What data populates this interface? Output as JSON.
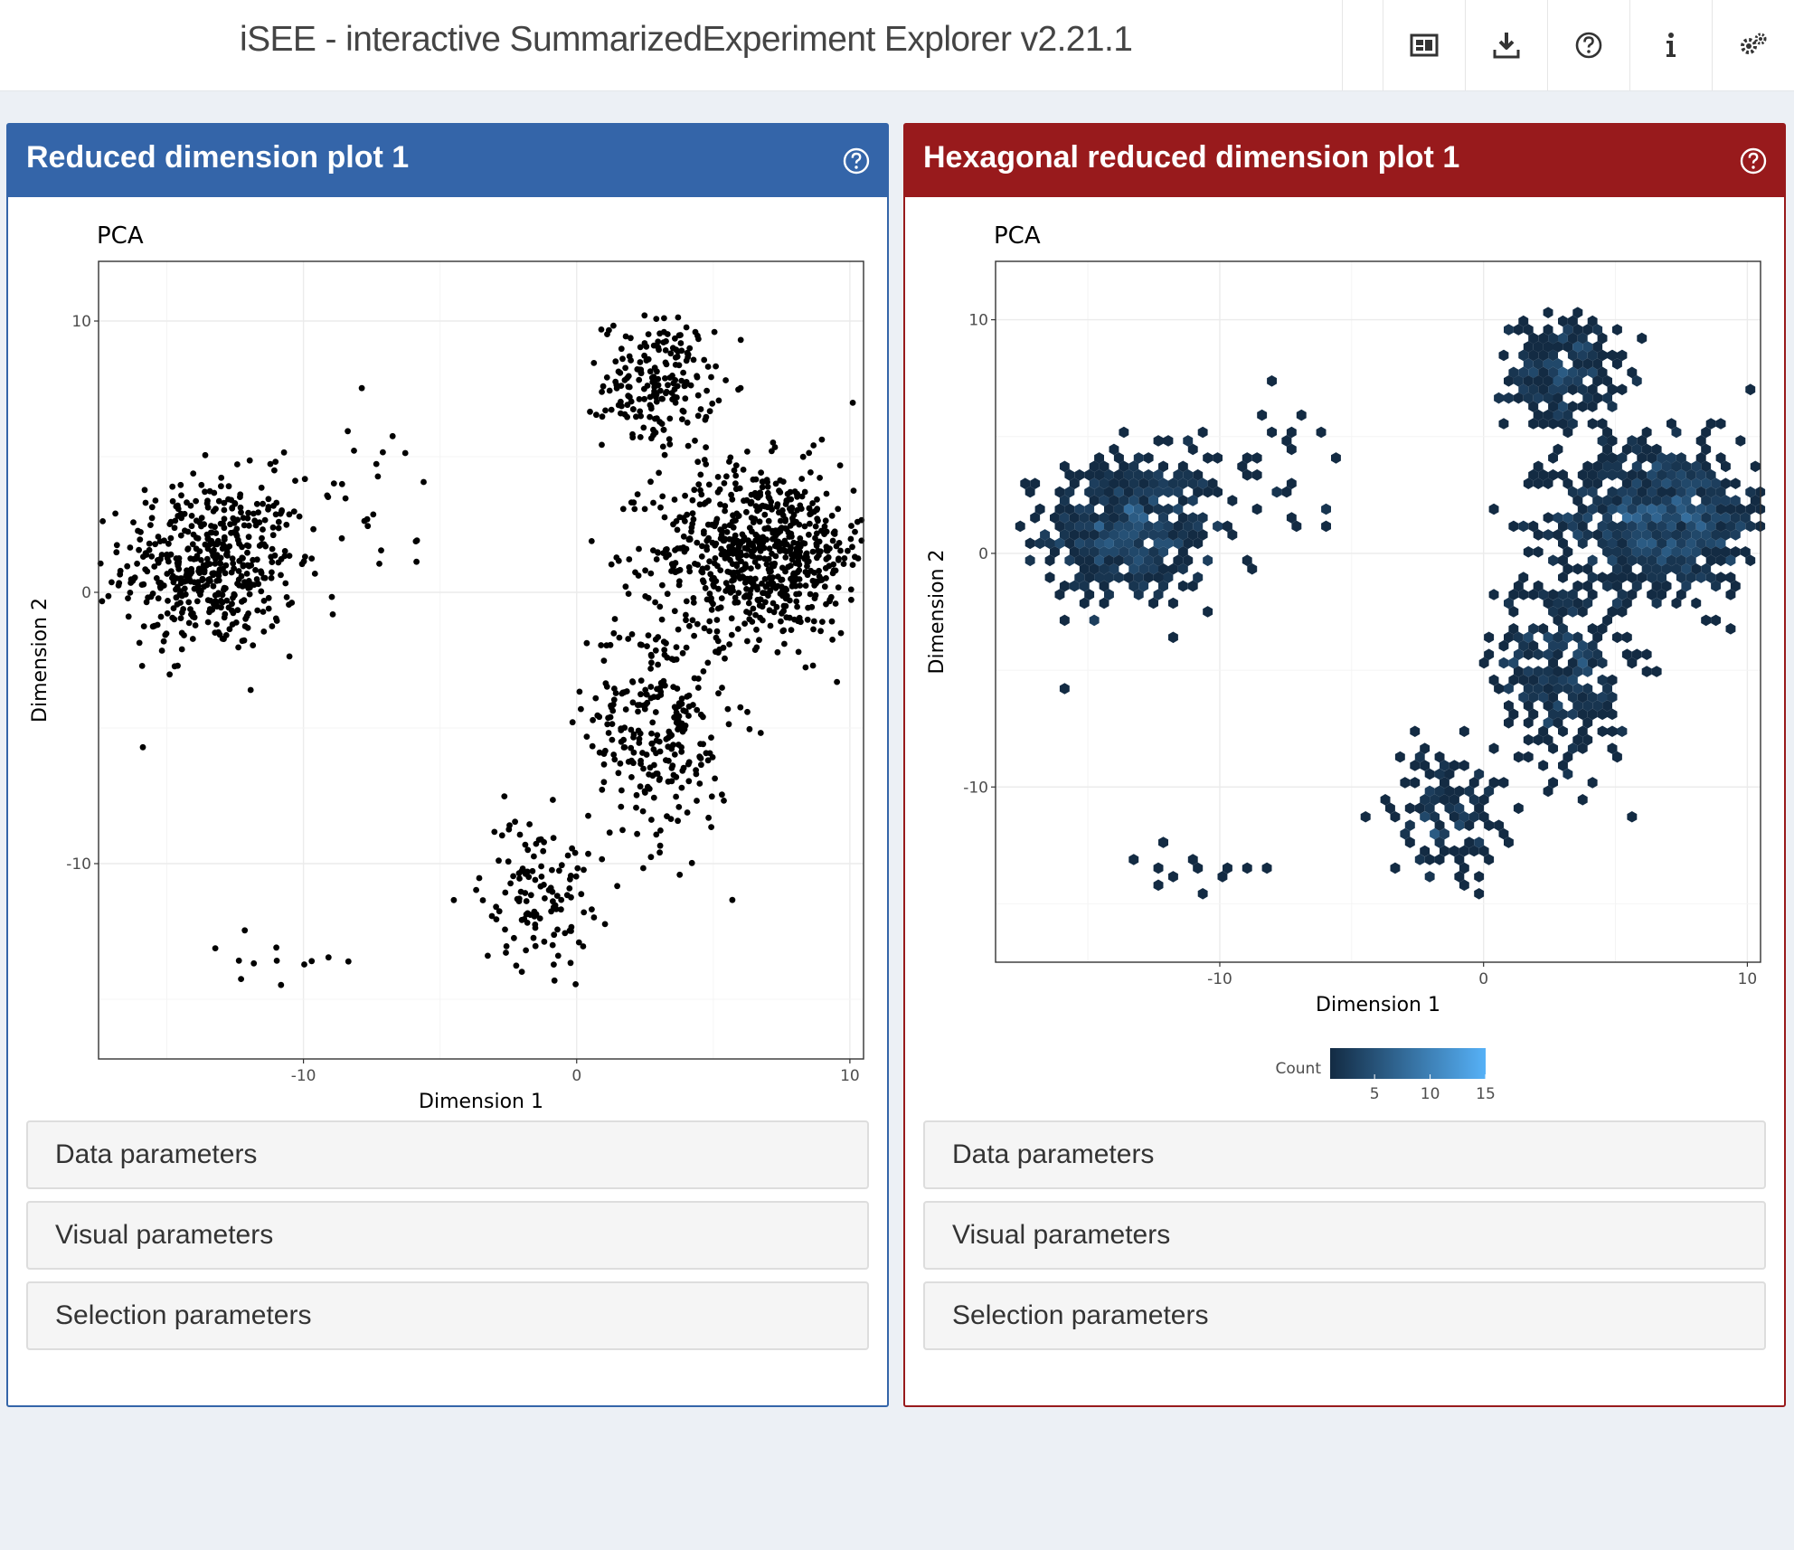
{
  "app": {
    "title": "iSEE - interactive SummarizedExperiment Explorer v2.21.1"
  },
  "toolbar": {
    "buttons": [
      {
        "icon": "panel-organization-icon"
      },
      {
        "icon": "download-icon"
      },
      {
        "icon": "question-circle-icon"
      },
      {
        "icon": "info-icon"
      },
      {
        "icon": "gears-icon"
      }
    ]
  },
  "panels": [
    {
      "title": "Reduced dimension plot 1",
      "header_color": "#3465a9",
      "params": [
        "Data parameters",
        "Visual parameters",
        "Selection parameters"
      ]
    },
    {
      "title": "Hexagonal reduced dimension plot 1",
      "header_color": "#981a1c",
      "params": [
        "Data parameters",
        "Visual parameters",
        "Selection parameters"
      ]
    }
  ],
  "chart_data": [
    {
      "type": "scatter",
      "title": "PCA",
      "xlabel": "Dimension 1",
      "ylabel": "Dimension 2",
      "xlim": [
        -17.5,
        10.5
      ],
      "ylim": [
        -17.2,
        12.2
      ],
      "xticks": [
        -10,
        0,
        10
      ],
      "yticks": [
        -10,
        0,
        10
      ],
      "grid": true,
      "point_color": "#000000",
      "clusters": [
        {
          "center": [
            -13.4,
            1.0
          ],
          "spread": [
            1.6,
            1.6
          ],
          "count": 480
        },
        {
          "center": [
            3.0,
            7.7
          ],
          "spread": [
            1.0,
            1.2
          ],
          "count": 200
        },
        {
          "center": [
            6.8,
            1.5
          ],
          "spread": [
            2.0,
            1.6
          ],
          "count": 700
        },
        {
          "center": [
            3.0,
            -5.0
          ],
          "spread": [
            1.3,
            2.2
          ],
          "count": 280
        },
        {
          "center": [
            -1.5,
            -11.0
          ],
          "spread": [
            1.0,
            1.4
          ],
          "count": 120
        },
        {
          "center": [
            -8.0,
            3.5
          ],
          "spread": [
            1.5,
            1.4
          ],
          "count": 30
        },
        {
          "center": [
            -11.0,
            -13.3
          ],
          "spread": [
            1.2,
            0.5
          ],
          "count": 12
        }
      ]
    },
    {
      "type": "heatmap",
      "title": "PCA",
      "xlabel": "Dimension 1",
      "ylabel": "Dimension 2",
      "xlim": [
        -18.5,
        10.5
      ],
      "ylim": [
        -17.5,
        12.5
      ],
      "xticks": [
        -10,
        0,
        10
      ],
      "yticks": [
        -10,
        0,
        10
      ],
      "grid": true,
      "legend": {
        "title": "Count",
        "ticks": [
          5,
          10,
          15
        ],
        "range": [
          1,
          15
        ],
        "low_color": "#132b43",
        "high_color": "#56b1f7"
      },
      "clusters": [
        {
          "center": [
            -13.4,
            1.0
          ],
          "spread": [
            1.6,
            1.6
          ],
          "count": 480
        },
        {
          "center": [
            3.0,
            7.7
          ],
          "spread": [
            1.0,
            1.2
          ],
          "count": 200
        },
        {
          "center": [
            6.8,
            1.5
          ],
          "spread": [
            2.0,
            1.6
          ],
          "count": 700
        },
        {
          "center": [
            3.0,
            -5.0
          ],
          "spread": [
            1.3,
            2.2
          ],
          "count": 280
        },
        {
          "center": [
            -1.5,
            -11.0
          ],
          "spread": [
            1.0,
            1.4
          ],
          "count": 120
        },
        {
          "center": [
            -8.0,
            3.5
          ],
          "spread": [
            1.5,
            1.4
          ],
          "count": 30
        },
        {
          "center": [
            -11.0,
            -13.3
          ],
          "spread": [
            1.2,
            0.5
          ],
          "count": 12
        }
      ]
    }
  ]
}
